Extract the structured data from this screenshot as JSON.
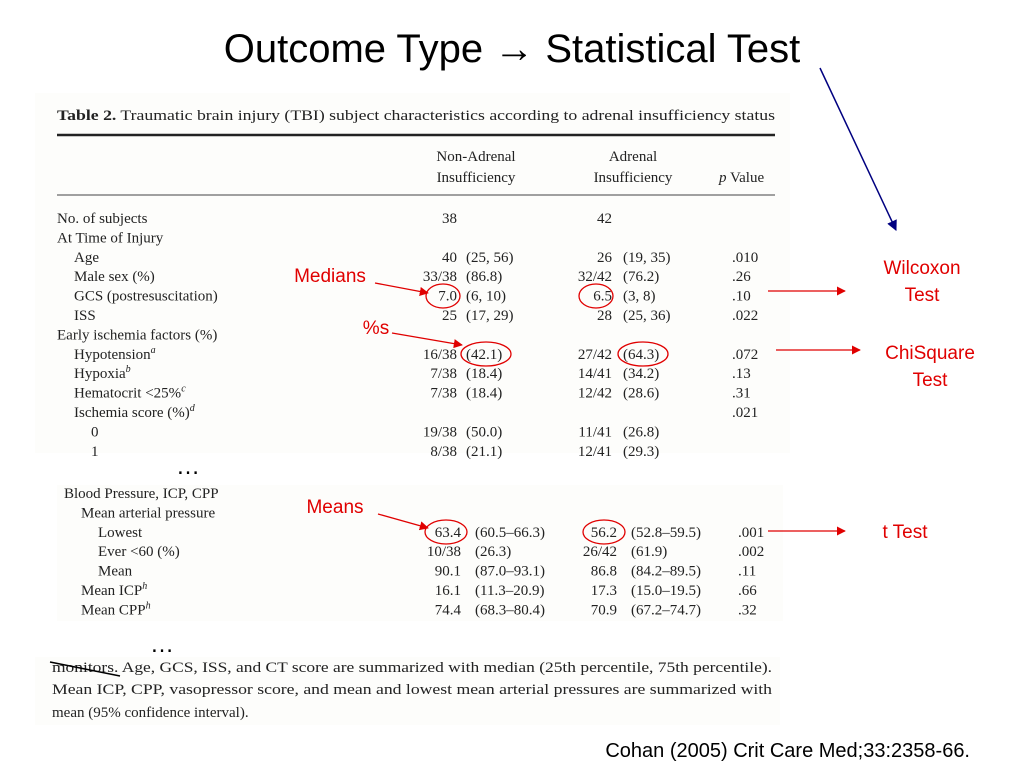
{
  "title": "Outcome Type → Statistical Test",
  "table": {
    "caption_label": "Table 2.",
    "caption": "Traumatic brain injury (TBI) subject characteristics according to adrenal insufficiency status",
    "header": {
      "non_adrenal": [
        "Non-Adrenal",
        "Insufficiency"
      ],
      "adrenal": [
        "Adrenal",
        "Insufficiency"
      ],
      "p_value": {
        "italic": "p",
        "text": "Value"
      }
    },
    "rows": [
      {
        "label": "No. of subjects",
        "n_non": "38",
        "n_adr": "42"
      },
      {
        "label": "At Time of Injury"
      },
      {
        "label": "Age",
        "n_non": "40",
        "ci_non": "(25, 56)",
        "n_adr": "26",
        "ci_adr": "(19, 35)",
        "p": ".010"
      },
      {
        "label": "Male sex (%)",
        "n_non": "33/38",
        "ci_non": "(86.8)",
        "n_adr": "32/42",
        "ci_adr": "(76.2)",
        "p": ".26"
      },
      {
        "label": "GCS (postresuscitation)",
        "n_non": "7.0",
        "ci_non": "(6, 10)",
        "n_adr": "6.5",
        "ci_adr": "(3, 8)",
        "p": ".10"
      },
      {
        "label": "ISS",
        "n_non": "25",
        "ci_non": "(17, 29)",
        "n_adr": "28",
        "ci_adr": "(25, 36)",
        "p": ".022"
      },
      {
        "label": "Early ischemia factors (%)"
      },
      {
        "label": "Hypotension",
        "sup": "a",
        "n_non": "16/38",
        "ci_non": "(42.1)",
        "n_adr": "27/42",
        "ci_adr": "(64.3)",
        "p": ".072"
      },
      {
        "label": "Hypoxia",
        "sup": "b",
        "n_non": "7/38",
        "ci_non": "(18.4)",
        "n_adr": "14/41",
        "ci_adr": "(34.2)",
        "p": ".13"
      },
      {
        "label": "Hematocrit <25%",
        "sup": "c",
        "n_non": "7/38",
        "ci_non": "(18.4)",
        "n_adr": "12/42",
        "ci_adr": "(28.6)",
        "p": ".31"
      },
      {
        "label": "Ischemia score (%)",
        "sup": "d",
        "p": ".021"
      },
      {
        "label": "0",
        "n_non": "19/38",
        "ci_non": "(50.0)",
        "n_adr": "11/41",
        "ci_adr": "(26.8)"
      },
      {
        "label": "1",
        "n_non": "8/38",
        "ci_non": "(21.1)",
        "n_adr": "12/41",
        "ci_adr": "(29.3)"
      }
    ]
  },
  "table_continued": {
    "rows": [
      {
        "label": "Blood Pressure, ICP, CPP"
      },
      {
        "label": "Mean arterial pressure"
      },
      {
        "label": "Lowest",
        "n_non": "63.4",
        "ci_non": "(60.5–66.3)",
        "n_adr": "56.2",
        "ci_adr": "(52.8–59.5)",
        "p": ".001"
      },
      {
        "label": "Ever <60 (%)",
        "n_non": "10/38",
        "ci_non": "(26.3)",
        "n_adr": "26/42",
        "ci_adr": "(61.9)",
        "p": ".002"
      },
      {
        "label": "Mean",
        "n_non": "90.1",
        "ci_non": "(87.0–93.1)",
        "n_adr": "86.8",
        "ci_adr": "(84.2–89.5)",
        "p": ".11"
      },
      {
        "label": "Mean ICP",
        "sup": "h",
        "n_non": "16.1",
        "ci_non": "(11.3–20.9)",
        "n_adr": "17.3",
        "ci_adr": "(15.0–19.5)",
        "p": ".66"
      },
      {
        "label": "Mean CPP",
        "sup": "h",
        "n_non": "74.4",
        "ci_non": "(68.3–80.4)",
        "n_adr": "70.9",
        "ci_adr": "(67.2–74.7)",
        "p": ".32"
      }
    ]
  },
  "footnote": {
    "lines": [
      "monitors. Age, GCS, ISS, and CT score are summarized with median (25th percentile, 75th percentile).",
      "Mean ICP, CPP, vasopressor score, and mean and lowest mean arterial pressures are summarized with",
      "mean (95% confidence interval)."
    ]
  },
  "ellipses": [
    "…",
    "…"
  ],
  "annotations": {
    "medians": "Medians",
    "percents": "%s",
    "means": "Means",
    "wilcoxon": [
      "Wilcoxon",
      "Test"
    ],
    "chisquare": [
      "ChiSquare",
      "Test"
    ],
    "t_test": "t Test"
  },
  "citation": "Cohan (2005) Crit Care Med;33:2358-66."
}
